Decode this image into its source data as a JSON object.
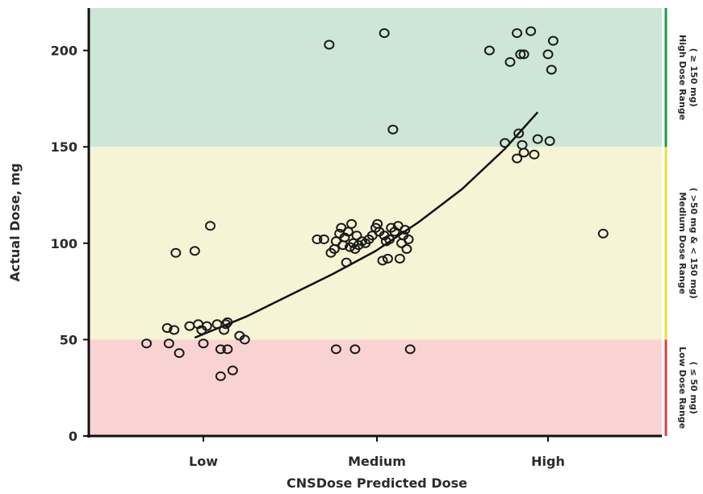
{
  "chart_data": {
    "type": "scatter",
    "title": "",
    "xlabel": "CNSDose Predicted Dose",
    "ylabel": "Actual Dose, mg",
    "categories": [
      "Low",
      "Medium",
      "High"
    ],
    "ylim": [
      0,
      222
    ],
    "yticks": [
      0,
      50,
      100,
      150,
      200
    ],
    "grid": false,
    "bands": [
      {
        "name": "low",
        "label": "Low Dose Range",
        "sublabel": "( ≤ 50 mg)",
        "from": 0,
        "to": 50,
        "fill": "#f9d3d2",
        "edge": "#e03c3c"
      },
      {
        "name": "medium",
        "label": "Medium Dose Range",
        "sublabel": "( >50 mg & < 150 mg)",
        "from": 50,
        "to": 150,
        "fill": "#f7f3d5",
        "edge": "#e8e030"
      },
      {
        "name": "high",
        "label": "High Dose Range",
        "sublabel": "( ≥ 150 mg)",
        "from": 150,
        "to": 222,
        "fill": "#cde6d6",
        "edge": "#1a9a4a"
      }
    ],
    "trend": {
      "x": [
        -0.05,
        0.25,
        0.5,
        0.75,
        1.0,
        1.25,
        1.5,
        1.75,
        1.94
      ],
      "y": [
        51,
        62,
        73,
        84,
        96,
        111,
        128,
        149,
        168
      ]
    },
    "points": [
      {
        "x": -0.33,
        "y": 48
      },
      {
        "x": -0.2,
        "y": 48
      },
      {
        "x": -0.21,
        "y": 56
      },
      {
        "x": -0.17,
        "y": 55
      },
      {
        "x": -0.14,
        "y": 43
      },
      {
        "x": -0.16,
        "y": 95
      },
      {
        "x": -0.05,
        "y": 96
      },
      {
        "x": 0.04,
        "y": 109
      },
      {
        "x": -0.08,
        "y": 57
      },
      {
        "x": -0.03,
        "y": 58
      },
      {
        "x": -0.01,
        "y": 55
      },
      {
        "x": 0.02,
        "y": 57
      },
      {
        "x": 0.08,
        "y": 58
      },
      {
        "x": 0.13,
        "y": 58
      },
      {
        "x": 0.14,
        "y": 59
      },
      {
        "x": 0.12,
        "y": 55
      },
      {
        "x": 0.0,
        "y": 48
      },
      {
        "x": 0.1,
        "y": 45
      },
      {
        "x": 0.14,
        "y": 45
      },
      {
        "x": 0.21,
        "y": 52
      },
      {
        "x": 0.24,
        "y": 50
      },
      {
        "x": 0.1,
        "y": 31
      },
      {
        "x": 0.17,
        "y": 34
      },
      {
        "x": 0.73,
        "y": 203
      },
      {
        "x": 1.05,
        "y": 209
      },
      {
        "x": 1.1,
        "y": 159
      },
      {
        "x": 0.77,
        "y": 45
      },
      {
        "x": 0.88,
        "y": 45
      },
      {
        "x": 1.2,
        "y": 45
      },
      {
        "x": 0.66,
        "y": 102
      },
      {
        "x": 0.7,
        "y": 102
      },
      {
        "x": 0.74,
        "y": 95
      },
      {
        "x": 0.76,
        "y": 97
      },
      {
        "x": 0.77,
        "y": 101
      },
      {
        "x": 0.79,
        "y": 105
      },
      {
        "x": 0.8,
        "y": 108
      },
      {
        "x": 0.81,
        "y": 99
      },
      {
        "x": 0.82,
        "y": 103
      },
      {
        "x": 0.83,
        "y": 90
      },
      {
        "x": 0.84,
        "y": 106
      },
      {
        "x": 0.85,
        "y": 98
      },
      {
        "x": 0.86,
        "y": 110
      },
      {
        "x": 0.87,
        "y": 100
      },
      {
        "x": 0.88,
        "y": 97
      },
      {
        "x": 0.89,
        "y": 104
      },
      {
        "x": 0.9,
        "y": 99
      },
      {
        "x": 0.92,
        "y": 101
      },
      {
        "x": 0.94,
        "y": 100
      },
      {
        "x": 0.96,
        "y": 102
      },
      {
        "x": 0.98,
        "y": 104
      },
      {
        "x": 1.0,
        "y": 108
      },
      {
        "x": 1.01,
        "y": 110
      },
      {
        "x": 1.02,
        "y": 106
      },
      {
        "x": 1.04,
        "y": 91
      },
      {
        "x": 1.05,
        "y": 104
      },
      {
        "x": 1.06,
        "y": 101
      },
      {
        "x": 1.07,
        "y": 92
      },
      {
        "x": 1.08,
        "y": 102
      },
      {
        "x": 1.09,
        "y": 108
      },
      {
        "x": 1.11,
        "y": 106
      },
      {
        "x": 1.13,
        "y": 109
      },
      {
        "x": 1.14,
        "y": 92
      },
      {
        "x": 1.15,
        "y": 100
      },
      {
        "x": 1.16,
        "y": 104
      },
      {
        "x": 1.17,
        "y": 107
      },
      {
        "x": 1.18,
        "y": 97
      },
      {
        "x": 1.19,
        "y": 102
      },
      {
        "x": 1.66,
        "y": 200
      },
      {
        "x": 1.78,
        "y": 194
      },
      {
        "x": 1.82,
        "y": 209
      },
      {
        "x": 1.86,
        "y": 198
      },
      {
        "x": 1.9,
        "y": 210
      },
      {
        "x": 1.84,
        "y": 198
      },
      {
        "x": 2.0,
        "y": 198
      },
      {
        "x": 2.03,
        "y": 205
      },
      {
        "x": 2.02,
        "y": 190
      },
      {
        "x": 1.83,
        "y": 157
      },
      {
        "x": 1.75,
        "y": 152
      },
      {
        "x": 1.82,
        "y": 144
      },
      {
        "x": 1.85,
        "y": 151
      },
      {
        "x": 1.86,
        "y": 147
      },
      {
        "x": 1.92,
        "y": 146
      },
      {
        "x": 1.94,
        "y": 154
      },
      {
        "x": 2.01,
        "y": 153
      },
      {
        "x": 2.32,
        "y": 105
      }
    ]
  }
}
